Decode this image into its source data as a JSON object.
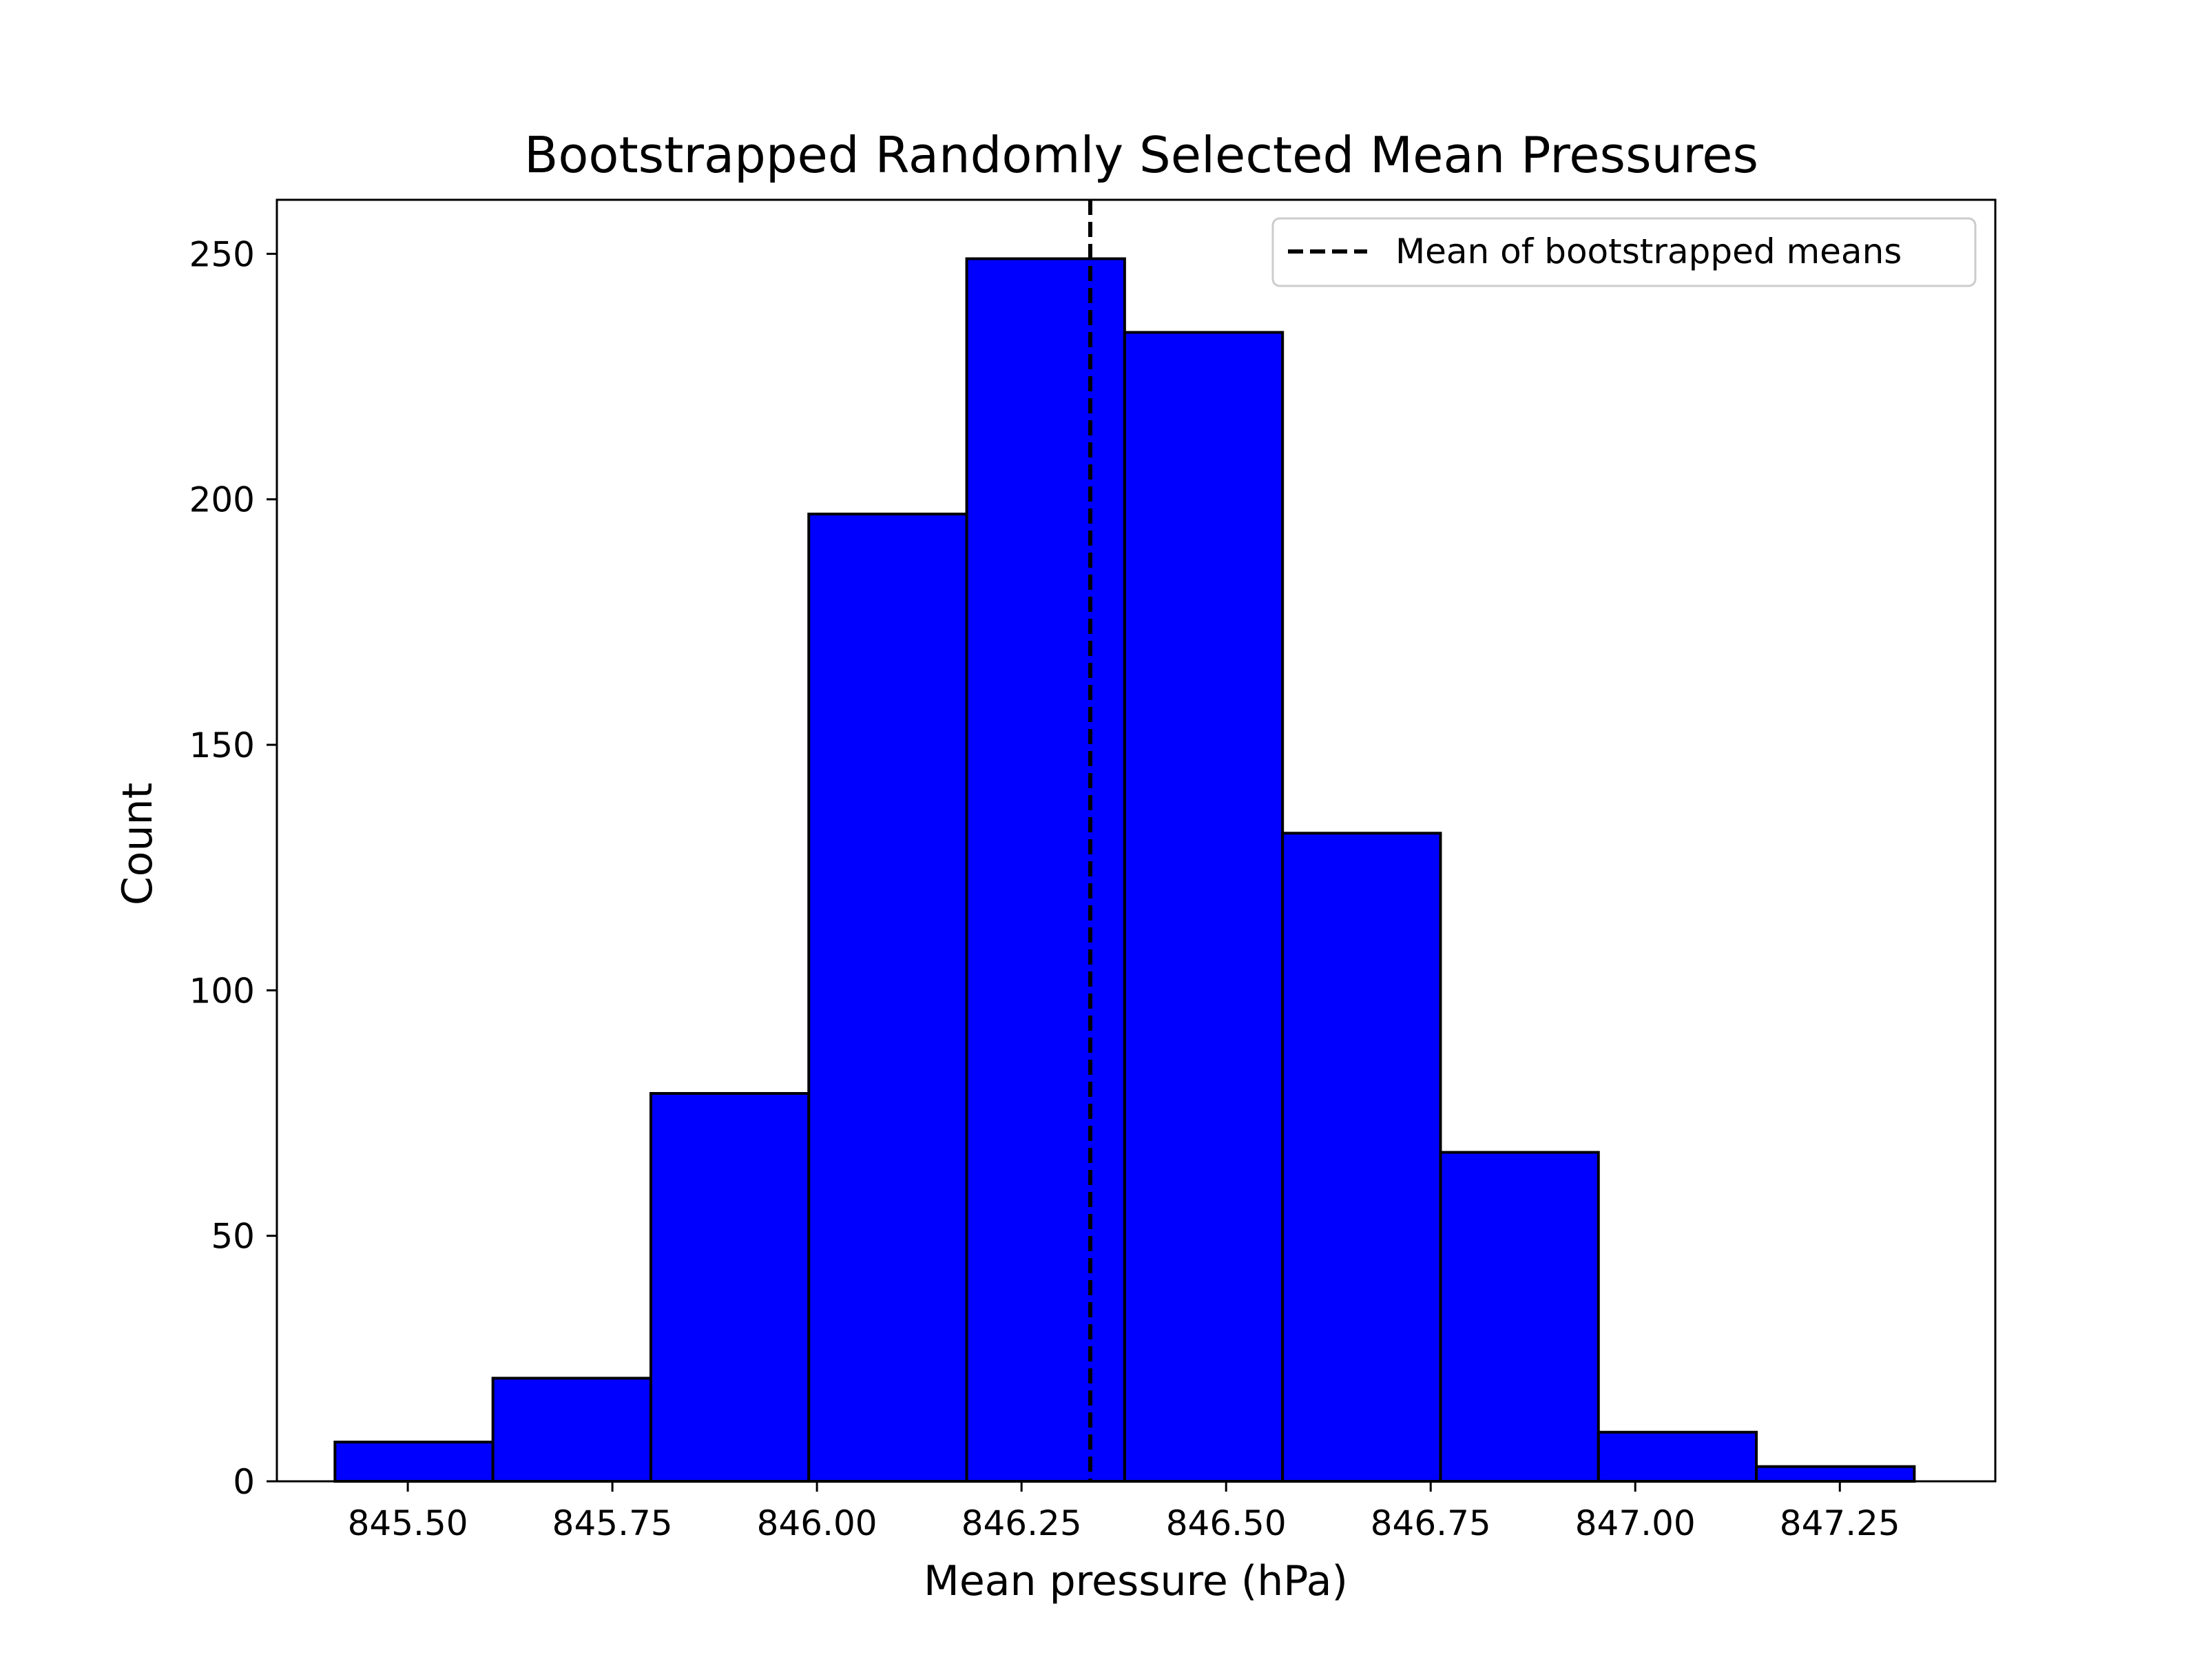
{
  "chart_data": {
    "type": "bar",
    "title": "Bootstrapped Randomly Selected Mean Pressures",
    "xlabel": "Mean pressure (hPa)",
    "ylabel": "Count",
    "xlim": [
      845.34,
      847.44
    ],
    "ylim": [
      0,
      261
    ],
    "grid": false,
    "bar_color": "#0000ff",
    "edge_color": "#000000",
    "bins": [
      {
        "start": 845.411,
        "end": 845.604,
        "count": 8
      },
      {
        "start": 845.604,
        "end": 845.797,
        "count": 21
      },
      {
        "start": 845.797,
        "end": 845.99,
        "count": 79
      },
      {
        "start": 845.99,
        "end": 846.183,
        "count": 197
      },
      {
        "start": 846.183,
        "end": 846.376,
        "count": 249
      },
      {
        "start": 846.376,
        "end": 846.569,
        "count": 234
      },
      {
        "start": 846.569,
        "end": 846.762,
        "count": 132
      },
      {
        "start": 846.762,
        "end": 846.955,
        "count": 67
      },
      {
        "start": 846.955,
        "end": 847.148,
        "count": 10
      },
      {
        "start": 847.148,
        "end": 847.341,
        "count": 3
      }
    ],
    "xticks": [
      845.5,
      845.75,
      846.0,
      846.25,
      846.5,
      846.75,
      847.0,
      847.25
    ],
    "xtick_labels": [
      "845.50",
      "845.75",
      "846.00",
      "846.25",
      "846.50",
      "846.75",
      "847.00",
      "847.25"
    ],
    "yticks": [
      0,
      50,
      100,
      150,
      200,
      250
    ],
    "ytick_labels": [
      "0",
      "50",
      "100",
      "150",
      "200",
      "250"
    ],
    "reference_line": {
      "x": 846.334,
      "style": "dashed",
      "color": "#000000",
      "label": "Mean of bootstrapped means"
    },
    "legend": {
      "placement": "top-right",
      "entries": [
        "Mean of bootstrapped means"
      ]
    }
  }
}
